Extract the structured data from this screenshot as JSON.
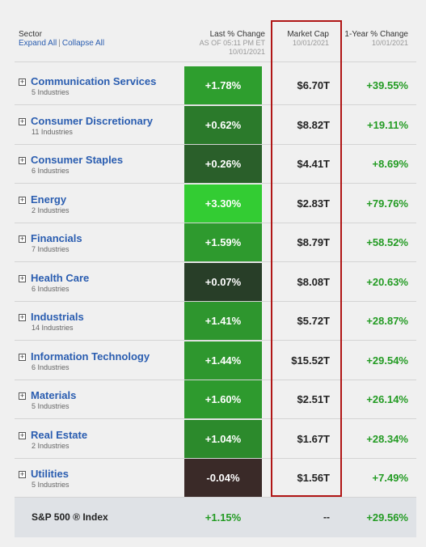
{
  "header": {
    "sector_label": "Sector",
    "expand_all": "Expand All",
    "separator": "|",
    "collapse_all": "Collapse All",
    "last_change": {
      "title": "Last % Change",
      "sub1": "AS OF 05:11 PM ET",
      "sub2": "10/01/2021"
    },
    "market_cap": {
      "title": "Market Cap",
      "sub1": "10/01/2021"
    },
    "year_change": {
      "title": "1-Year % Change",
      "sub1": "10/01/2021"
    }
  },
  "colors": {
    "link": "#2a5db0",
    "positive": "#239b23",
    "highlight_border": "#b01616"
  },
  "rows": [
    {
      "name": "Communication Services",
      "sub": "5 Industries",
      "change": "+1.78%",
      "change_color": "#2e9e2e",
      "mcap": "$6.70T",
      "year": "+39.55%"
    },
    {
      "name": "Consumer Discretionary",
      "sub": "11 Industries",
      "change": "+0.62%",
      "change_color": "#2b7a2b",
      "mcap": "$8.82T",
      "year": "+19.11%"
    },
    {
      "name": "Consumer Staples",
      "sub": "6 Industries",
      "change": "+0.26%",
      "change_color": "#2a5f2a",
      "mcap": "$4.41T",
      "year": "+8.69%"
    },
    {
      "name": "Energy",
      "sub": "2 Industries",
      "change": "+3.30%",
      "change_color": "#33cc33",
      "mcap": "$2.83T",
      "year": "+79.76%"
    },
    {
      "name": "Financials",
      "sub": "7 Industries",
      "change": "+1.59%",
      "change_color": "#2e9a2e",
      "mcap": "$8.79T",
      "year": "+58.52%"
    },
    {
      "name": "Health Care",
      "sub": "6 Industries",
      "change": "+0.07%",
      "change_color": "#283e28",
      "mcap": "$8.08T",
      "year": "+20.63%"
    },
    {
      "name": "Industrials",
      "sub": "14 Industries",
      "change": "+1.41%",
      "change_color": "#2e962e",
      "mcap": "$5.72T",
      "year": "+28.87%"
    },
    {
      "name": "Information Technology",
      "sub": "6 Industries",
      "change": "+1.44%",
      "change_color": "#2e972e",
      "mcap": "$15.52T",
      "year": "+29.54%"
    },
    {
      "name": "Materials",
      "sub": "5 Industries",
      "change": "+1.60%",
      "change_color": "#2e9a2e",
      "mcap": "$2.51T",
      "year": "+26.14%"
    },
    {
      "name": "Real Estate",
      "sub": "2 Industries",
      "change": "+1.04%",
      "change_color": "#2c8a2c",
      "mcap": "$1.67T",
      "year": "+28.34%"
    },
    {
      "name": "Utilities",
      "sub": "5 Industries",
      "change": "-0.04%",
      "change_color": "#3a2a28",
      "mcap": "$1.56T",
      "year": "+7.49%"
    }
  ],
  "index_row": {
    "name": "S&P 500 ® Index",
    "change": "+1.15%",
    "mcap": "--",
    "year": "+29.56%"
  },
  "icons": {
    "expander": "plus-box-icon"
  }
}
